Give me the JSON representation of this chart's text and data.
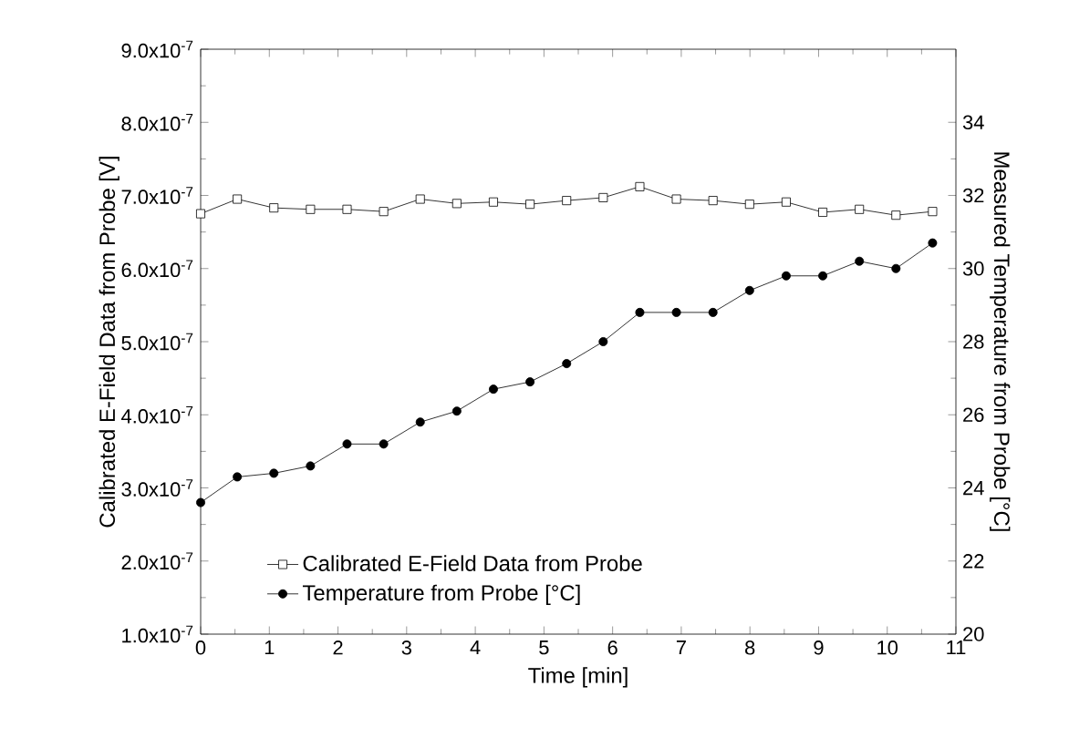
{
  "chart_data": {
    "type": "line",
    "xlabel": "Time [min]",
    "ylabel": "Calibrated E-Field Data from Probe [V]",
    "y2label": "Measured Temperature from Probe [°C]",
    "x": [
      0,
      0.533,
      1.066,
      1.599,
      2.132,
      2.665,
      3.198,
      3.731,
      4.264,
      4.797,
      5.33,
      5.863,
      6.396,
      6.929,
      7.462,
      7.995,
      8.528,
      9.061,
      9.594,
      10.127,
      10.66
    ],
    "series": [
      {
        "name": "Calibrated E-Field Data from Probe",
        "color": "#000000",
        "marker": "square",
        "values": [
          6.75e-07,
          6.95e-07,
          6.83e-07,
          6.81e-07,
          6.81e-07,
          6.78e-07,
          6.95e-07,
          6.89e-07,
          6.91e-07,
          6.88e-07,
          6.93e-07,
          6.97e-07,
          7.12e-07,
          6.95e-07,
          6.93e-07,
          6.88e-07,
          6.91e-07,
          6.77e-07,
          6.81e-07,
          6.73e-07,
          6.78e-07
        ]
      },
      {
        "name": "Temperature from Probe [°C]",
        "color": "#000000",
        "marker": "circle",
        "axis": "y2",
        "values": [
          23.6,
          24.3,
          24.4,
          24.6,
          25.2,
          25.2,
          25.8,
          26.1,
          26.7,
          26.9,
          27.4,
          28.0,
          28.8,
          28.8,
          28.8,
          29.4,
          29.8,
          29.8,
          30.2,
          30.0,
          30.7
        ]
      }
    ],
    "xlim": [
      0,
      11
    ],
    "xticks": [
      0,
      1,
      2,
      3,
      4,
      5,
      6,
      7,
      8,
      9,
      10,
      11
    ],
    "ylim": [
      1e-07,
      9e-07
    ],
    "yticks": [
      {
        "value": 1e-07,
        "label": "1.0x10$^{-7}$"
      },
      {
        "value": 2e-07,
        "label": "2.0x10$^{-7}$"
      },
      {
        "value": 3e-07,
        "label": "3.0x10$^{-7}$"
      },
      {
        "value": 4e-07,
        "label": "4.0x10$^{-7}$"
      },
      {
        "value": 5e-07,
        "label": "5.0x10$^{-7}$"
      },
      {
        "value": 6e-07,
        "label": "6.0x10$^{-7}$"
      },
      {
        "value": 7e-07,
        "label": "7.0x10$^{-7}$"
      },
      {
        "value": 8e-07,
        "label": "8.0x10$^{-7}$"
      },
      {
        "value": 9e-07,
        "label": "9.0x10$^{-7}$"
      }
    ],
    "y2lim": [
      20,
      36
    ],
    "y2ticks": [
      20,
      22,
      24,
      26,
      28,
      30,
      32,
      34
    ],
    "legend": "bottom",
    "line_style": "solid",
    "grid": false
  }
}
